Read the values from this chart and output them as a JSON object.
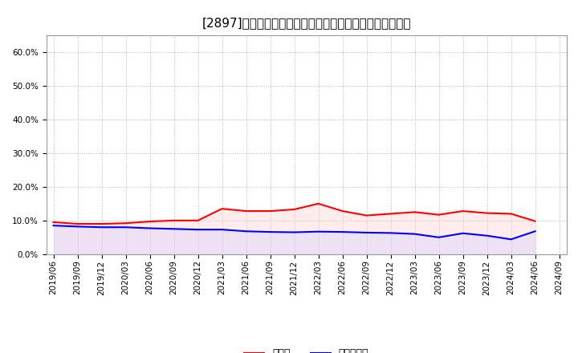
{
  "title": "[2897]　現須金、有利子負債の総資産に対する比率の推移",
  "ylim": [
    0.0,
    0.65
  ],
  "yticks": [
    0.0,
    0.1,
    0.2,
    0.3,
    0.4,
    0.5,
    0.6
  ],
  "x_labels": [
    "2019/06",
    "2019/09",
    "2019/12",
    "2020/03",
    "2020/06",
    "2020/09",
    "2020/12",
    "2021/03",
    "2021/06",
    "2021/09",
    "2021/12",
    "2022/03",
    "2022/06",
    "2022/09",
    "2022/12",
    "2023/03",
    "2023/06",
    "2023/09",
    "2023/12",
    "2024/03",
    "2024/06",
    "2024/09"
  ],
  "cash_values": [
    0.095,
    0.09,
    0.09,
    0.092,
    0.097,
    0.1,
    0.1,
    0.135,
    0.128,
    0.128,
    0.133,
    0.15,
    0.128,
    0.115,
    0.12,
    0.125,
    0.117,
    0.128,
    0.122,
    0.12,
    0.098,
    null
  ],
  "debt_values": [
    0.085,
    0.082,
    0.08,
    0.08,
    0.077,
    0.075,
    0.073,
    0.073,
    0.068,
    0.066,
    0.065,
    0.067,
    0.066,
    0.064,
    0.063,
    0.06,
    0.05,
    0.062,
    0.055,
    0.044,
    0.068,
    null
  ],
  "cash_color": "#ff0000",
  "debt_color": "#0000ff",
  "cash_fill_color": "#ffcccc",
  "debt_fill_color": "#ccccff",
  "cash_label": "現須金",
  "debt_label": "有利子負債",
  "background_color": "#ffffff",
  "grid_color": "#aaaaaa",
  "line_width": 1.5,
  "title_fontsize": 11,
  "legend_fontsize": 9,
  "tick_fontsize": 7.5,
  "fill_alpha": 0.35
}
